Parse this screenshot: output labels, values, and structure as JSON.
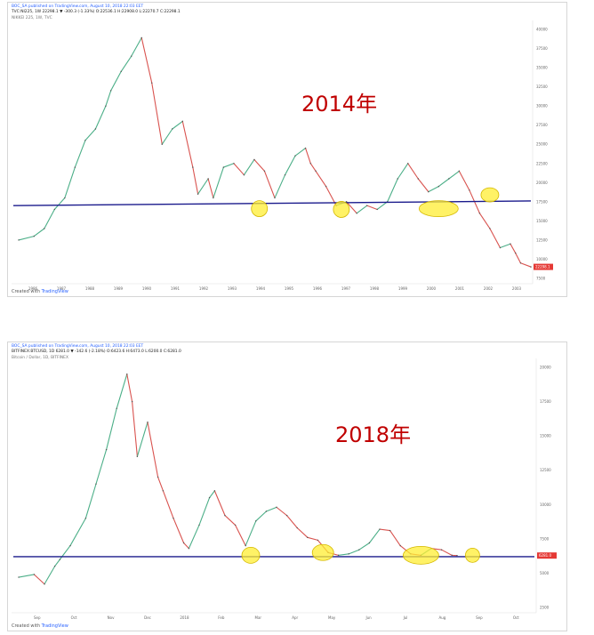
{
  "charts": [
    {
      "id": "top",
      "header": {
        "line1": "BOC_SA published on TradingView.com, August 10, 2018 22:03 EET",
        "line2": "TVC:NI225, 1W 22298.1 ▼ -300.3 (-1.33%) O:22536.1 H:22908.0 L:22270.7 C:22298.1",
        "line3": "NIKKEI 225, 1W, TVC"
      },
      "annotation": "2014年",
      "footer": {
        "created_with": "Created with",
        "brand": "TradingView"
      },
      "price_tag": "22298.1"
    },
    {
      "id": "bottom",
      "header": {
        "line1": "BOC_SA published on TradingView.com, August 10, 2018 22:03 EET",
        "line2": "BITFINEX:BTCUSD, 1D 6281.0 ▼ -142.6 (-2.18%) O:6423.6 H:6473.0 L:6200.0 C:6281.0",
        "line3": "Bitcoin / Dollar, 1D, BITFINEX"
      },
      "annotation": "2018年",
      "footer": {
        "created_with": "Created with",
        "brand": "TradingView"
      },
      "price_tag": "6281.0"
    }
  ],
  "chart_data": [
    {
      "type": "line",
      "title": "NIKKEI 225, 1W, TVC",
      "x_ticks": [
        "1986",
        "1987",
        "1988",
        "1989",
        "1990",
        "1991",
        "1992",
        "1993",
        "1994",
        "1995",
        "1996",
        "1997",
        "1998",
        "1999",
        "2000",
        "2001",
        "2002",
        "2003"
      ],
      "ylim": [
        7500,
        40000
      ],
      "y_ticks": [
        7500,
        10000,
        12500,
        15000,
        17500,
        20000,
        22500,
        25000,
        27500,
        30000,
        32500,
        35000,
        37500,
        40000
      ],
      "series": [
        {
          "x": [
            0,
            3,
            5,
            7,
            9,
            11,
            13,
            15,
            17,
            18,
            20,
            22,
            24,
            26,
            28,
            30,
            32,
            34,
            35,
            37,
            38,
            40,
            42,
            44,
            46,
            48,
            50,
            52,
            54,
            56,
            57,
            58,
            60,
            62,
            64,
            66,
            68,
            70,
            72,
            74,
            76,
            78,
            80,
            82,
            84,
            86,
            88,
            90,
            92,
            94,
            96,
            97,
            98,
            100
          ],
          "values": [
            12500,
            13000,
            14000,
            16500,
            18000,
            22000,
            25500,
            27000,
            30000,
            32000,
            34500,
            36500,
            38900,
            33000,
            25000,
            27000,
            28000,
            22000,
            18500,
            20500,
            18000,
            22000,
            22500,
            21000,
            23000,
            21500,
            18000,
            21000,
            23500,
            24500,
            22500,
            21500,
            19500,
            17000,
            17500,
            16000,
            17000,
            16500,
            17500,
            20500,
            22500,
            20500,
            18800,
            19500,
            20500,
            21500,
            19000,
            16000,
            14000,
            11500,
            12000,
            10800,
            9500,
            9000
          ]
        }
      ],
      "support_line": [
        17000,
        17600
      ],
      "annotation": "2014年"
    },
    {
      "type": "line",
      "title": "Bitcoin / Dollar, 1D, BITFINEX",
      "x_ticks": [
        "Sep",
        "Oct",
        "Nov",
        "Dec",
        "2018",
        "Feb",
        "Mar",
        "Apr",
        "May",
        "Jun",
        "Jul",
        "Aug",
        "Sep",
        "Oct"
      ],
      "ylim": [
        2500,
        20000
      ],
      "y_ticks": [
        2500,
        5000,
        7500,
        10000,
        12500,
        15000,
        17500,
        20000
      ],
      "series": [
        {
          "x": [
            0,
            3,
            5,
            7,
            8,
            10,
            13,
            15,
            17,
            19,
            21,
            22,
            23,
            25,
            27,
            28,
            30,
            32,
            33,
            35,
            37,
            38,
            40,
            42,
            44,
            46,
            48,
            50,
            52,
            54,
            56,
            58,
            60,
            62,
            64,
            66,
            68,
            70,
            72,
            74,
            76,
            78,
            80,
            82,
            84,
            85
          ],
          "values": [
            4700,
            4900,
            4200,
            5500,
            6000,
            7000,
            9000,
            11500,
            14000,
            17000,
            19500,
            17500,
            13500,
            16000,
            12000,
            11000,
            9000,
            7200,
            6800,
            8500,
            10500,
            11000,
            9200,
            8500,
            7000,
            8800,
            9500,
            9800,
            9200,
            8300,
            7600,
            7400,
            6500,
            6300,
            6400,
            6700,
            7200,
            8200,
            8100,
            7000,
            6400,
            6300,
            6800,
            6700,
            6300,
            6281
          ]
        }
      ],
      "support_line": [
        6200,
        6200
      ],
      "annotation": "2018年"
    }
  ]
}
